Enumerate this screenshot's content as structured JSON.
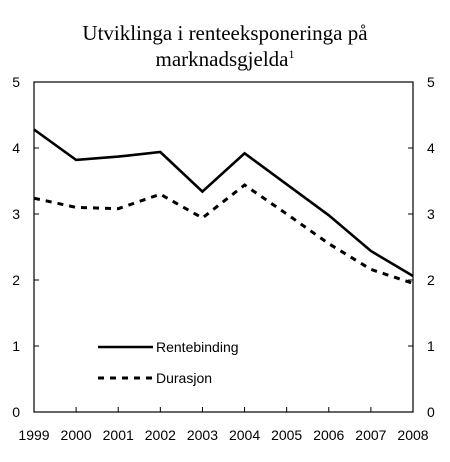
{
  "chart_data": {
    "type": "line",
    "title": "Utviklinga i renteeksponeringa på",
    "title_line2": "marknadsgjelda",
    "title_superscript": "1",
    "x": [
      1999,
      2000,
      2001,
      2002,
      2003,
      2004,
      2005,
      2006,
      2007,
      2008
    ],
    "x_tick_labels": [
      "1999",
      "2000",
      "2001",
      "2002",
      "2003",
      "2004",
      "2005",
      "2006",
      "2007",
      "2008"
    ],
    "ylim": [
      0,
      5
    ],
    "y_ticks": [
      0,
      1,
      2,
      3,
      4,
      5
    ],
    "y_tick_labels": [
      "0",
      "1",
      "2",
      "3",
      "4",
      "5"
    ],
    "secondary_y_ticks_mirrored": true,
    "grid": false,
    "legend_position": "bottom-left",
    "series": [
      {
        "name": "Rentebinding",
        "style": "solid",
        "values": [
          4.28,
          3.82,
          3.87,
          3.94,
          3.34,
          3.92,
          3.45,
          2.98,
          2.44,
          2.06
        ]
      },
      {
        "name": "Durasjon",
        "style": "dashed",
        "values": [
          3.24,
          3.1,
          3.08,
          3.3,
          2.94,
          3.44,
          3.0,
          2.55,
          2.16,
          1.95
        ]
      }
    ]
  }
}
